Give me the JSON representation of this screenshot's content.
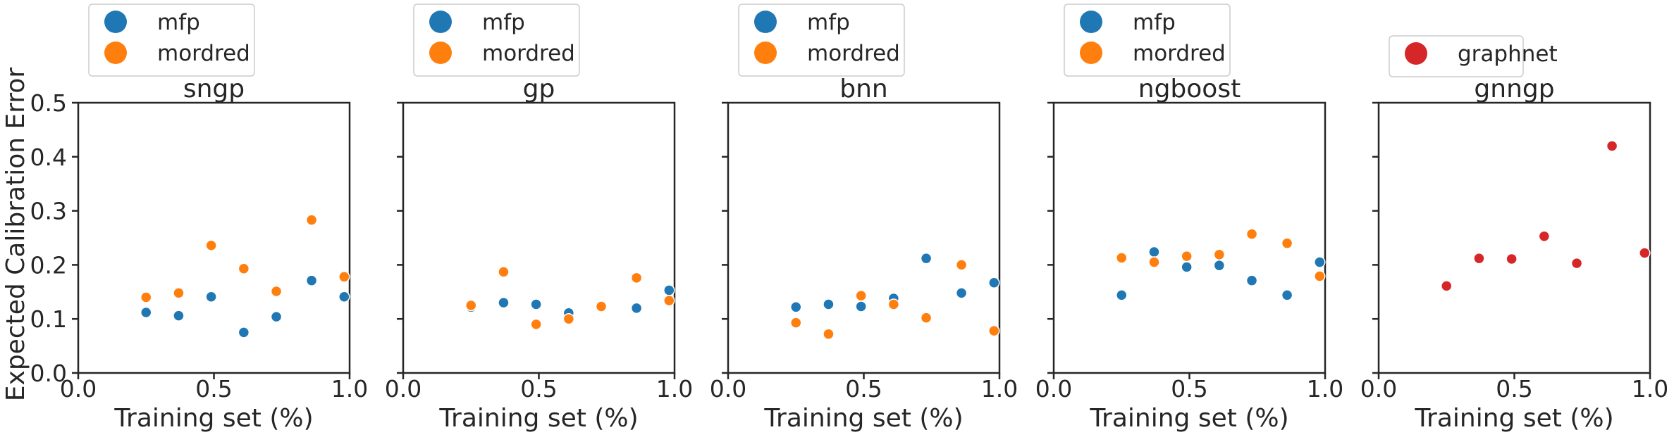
{
  "figure": {
    "ylabel": "Expected Calibration Error"
  },
  "chart_data": [
    {
      "type": "scatter",
      "title": "sngp",
      "xlabel": "Training set (%)",
      "ylabel": "Expected Calibration Error",
      "xlim": [
        0.0,
        1.0
      ],
      "ylim": [
        0.0,
        0.5
      ],
      "xticks": [
        "0.0",
        "0.5",
        "1.0"
      ],
      "yticks": [
        "0.0",
        "0.1",
        "0.2",
        "0.3",
        "0.4",
        "0.5"
      ],
      "legend_position": "top-left, above axes",
      "series": [
        {
          "name": "mfp",
          "color": "#1f77b4",
          "x": [
            0.25,
            0.37,
            0.49,
            0.61,
            0.73,
            0.86,
            0.98
          ],
          "y": [
            0.112,
            0.106,
            0.141,
            0.075,
            0.104,
            0.171,
            0.141
          ]
        },
        {
          "name": "mordred",
          "color": "#ff7f0e",
          "x": [
            0.25,
            0.37,
            0.49,
            0.61,
            0.73,
            0.86,
            0.98
          ],
          "y": [
            0.14,
            0.148,
            0.236,
            0.193,
            0.151,
            0.283,
            0.178
          ]
        }
      ]
    },
    {
      "type": "scatter",
      "title": "gp",
      "xlabel": "Training set (%)",
      "xlim": [
        0.0,
        1.0
      ],
      "ylim": [
        0.0,
        0.5
      ],
      "xticks": [
        "0.0",
        "0.5",
        "1.0"
      ],
      "legend_position": "top-left, above axes",
      "series": [
        {
          "name": "mfp",
          "color": "#1f77b4",
          "x": [
            0.25,
            0.37,
            0.49,
            0.61,
            0.73,
            0.86,
            0.98
          ],
          "y": [
            0.122,
            0.13,
            0.127,
            0.111,
            0.122,
            0.12,
            0.153
          ]
        },
        {
          "name": "mordred",
          "color": "#ff7f0e",
          "x": [
            0.25,
            0.37,
            0.49,
            0.61,
            0.73,
            0.86,
            0.98
          ],
          "y": [
            0.125,
            0.187,
            0.09,
            0.1,
            0.123,
            0.176,
            0.134
          ]
        }
      ]
    },
    {
      "type": "scatter",
      "title": "bnn",
      "xlabel": "Training set (%)",
      "xlim": [
        0.0,
        1.0
      ],
      "ylim": [
        0.0,
        0.5
      ],
      "xticks": [
        "0.0",
        "0.5",
        "1.0"
      ],
      "legend_position": "top-left, above axes",
      "series": [
        {
          "name": "mfp",
          "color": "#1f77b4",
          "x": [
            0.25,
            0.37,
            0.49,
            0.61,
            0.73,
            0.86,
            0.98
          ],
          "y": [
            0.122,
            0.127,
            0.123,
            0.138,
            0.212,
            0.148,
            0.167
          ]
        },
        {
          "name": "mordred",
          "color": "#ff7f0e",
          "x": [
            0.25,
            0.37,
            0.49,
            0.61,
            0.73,
            0.86,
            0.98
          ],
          "y": [
            0.093,
            0.072,
            0.143,
            0.127,
            0.102,
            0.2,
            0.078
          ]
        }
      ]
    },
    {
      "type": "scatter",
      "title": "ngboost",
      "xlabel": "Training set (%)",
      "xlim": [
        0.0,
        1.0
      ],
      "ylim": [
        0.0,
        0.5
      ],
      "xticks": [
        "0.0",
        "0.5",
        "1.0"
      ],
      "legend_position": "top-left, above axes",
      "series": [
        {
          "name": "mfp",
          "color": "#1f77b4",
          "x": [
            0.25,
            0.37,
            0.49,
            0.61,
            0.73,
            0.86,
            0.98
          ],
          "y": [
            0.144,
            0.224,
            0.196,
            0.199,
            0.171,
            0.144,
            0.205
          ]
        },
        {
          "name": "mordred",
          "color": "#ff7f0e",
          "x": [
            0.25,
            0.37,
            0.49,
            0.61,
            0.73,
            0.86,
            0.98
          ],
          "y": [
            0.213,
            0.205,
            0.216,
            0.219,
            0.257,
            0.24,
            0.179
          ]
        }
      ]
    },
    {
      "type": "scatter",
      "title": "gnngp",
      "xlabel": "Training set (%)",
      "xlim": [
        0.0,
        1.0
      ],
      "ylim": [
        0.0,
        0.5
      ],
      "xticks": [
        "0.0",
        "0.5",
        "1.0"
      ],
      "legend_position": "top-left, above axes",
      "series": [
        {
          "name": "graphnet",
          "color": "#d62728",
          "x": [
            0.25,
            0.37,
            0.49,
            0.61,
            0.73,
            0.86,
            0.98
          ],
          "y": [
            0.161,
            0.212,
            0.211,
            0.253,
            0.203,
            0.42,
            0.222
          ]
        }
      ]
    }
  ]
}
